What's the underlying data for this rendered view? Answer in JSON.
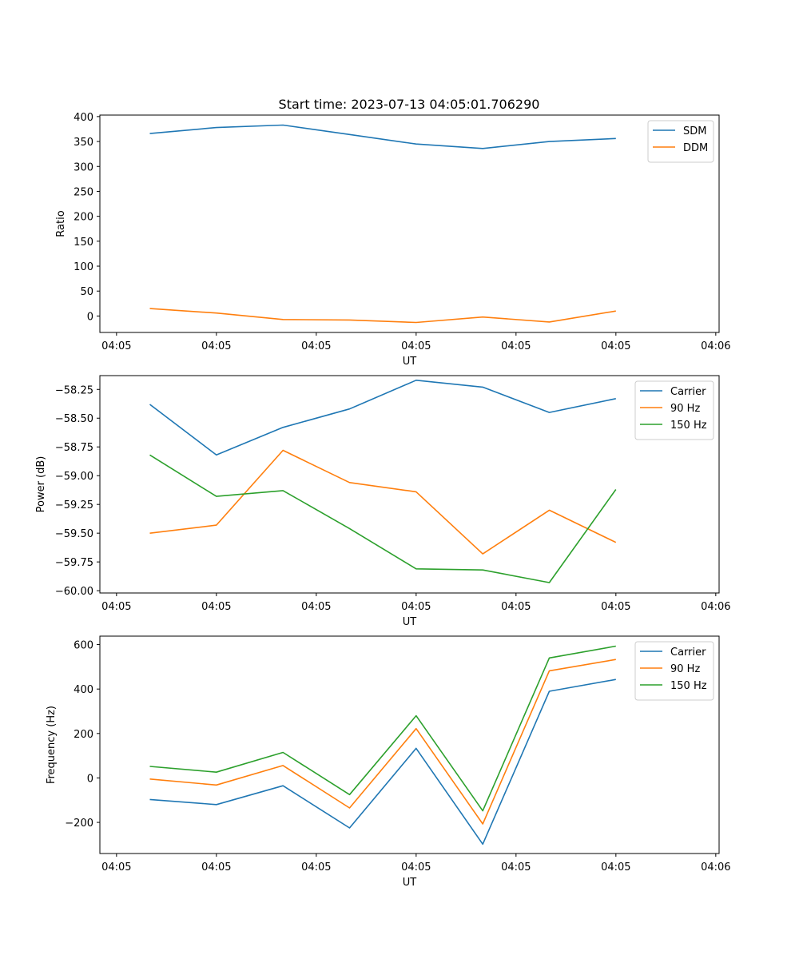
{
  "title": "Start time: 2023-07-13 04:05:01.706290",
  "chart_data": [
    {
      "type": "line",
      "xlabel": "UT",
      "ylabel": "Ratio",
      "x_tick_labels": [
        "04:05",
        "04:05",
        "04:05",
        "04:05",
        "04:05",
        "04:05",
        "04:06"
      ],
      "y_ticks": [
        0,
        50,
        100,
        150,
        200,
        250,
        300,
        350,
        400
      ],
      "y_tick_labels": [
        "0",
        "50",
        "100",
        "150",
        "200",
        "250",
        "300",
        "350",
        "400"
      ],
      "ylim": [
        -33,
        403
      ],
      "xlim": [
        -0.75,
        8.55
      ],
      "x": [
        0,
        1,
        2,
        3,
        4,
        5,
        6,
        7
      ],
      "series": [
        {
          "name": "SDM",
          "color": "#1f77b4",
          "values": [
            366,
            378,
            383,
            364,
            345,
            336,
            350,
            356
          ]
        },
        {
          "name": "DDM",
          "color": "#ff7f0e",
          "values": [
            15,
            6,
            -7,
            -8,
            -13,
            -2,
            -12,
            10
          ]
        }
      ],
      "legend": "top-right"
    },
    {
      "type": "line",
      "xlabel": "UT",
      "ylabel": "Power (dB)",
      "x_tick_labels": [
        "04:05",
        "04:05",
        "04:05",
        "04:05",
        "04:05",
        "04:05",
        "04:06"
      ],
      "y_ticks": [
        -60.0,
        -59.75,
        -59.5,
        -59.25,
        -59.0,
        -58.75,
        -58.5,
        -58.25
      ],
      "y_tick_labels": [
        "−60.00",
        "−59.75",
        "−59.50",
        "−59.25",
        "−59.00",
        "−58.75",
        "−58.50",
        "−58.25"
      ],
      "ylim": [
        -60.02,
        -58.13
      ],
      "xlim": [
        -0.75,
        8.55
      ],
      "x": [
        0,
        1,
        2,
        3,
        4,
        5,
        6,
        7
      ],
      "series": [
        {
          "name": "Carrier",
          "color": "#1f77b4",
          "values": [
            -58.38,
            -58.82,
            -58.58,
            -58.42,
            -58.17,
            -58.23,
            -58.45,
            -58.33
          ]
        },
        {
          "name": "90 Hz",
          "color": "#ff7f0e",
          "values": [
            -59.5,
            -59.43,
            -58.78,
            -59.06,
            -59.14,
            -59.68,
            -59.3,
            -59.58
          ]
        },
        {
          "name": "150 Hz",
          "color": "#2ca02c",
          "values": [
            -58.82,
            -59.18,
            -59.13,
            -59.46,
            -59.81,
            -59.82,
            -59.93,
            -59.12
          ]
        }
      ],
      "legend": "top-right"
    },
    {
      "type": "line",
      "xlabel": "UT",
      "ylabel": "Frequency (Hz)",
      "x_tick_labels": [
        "04:05",
        "04:05",
        "04:05",
        "04:05",
        "04:05",
        "04:05",
        "04:06"
      ],
      "y_ticks": [
        -200,
        0,
        200,
        400,
        600
      ],
      "y_tick_labels": [
        "−200",
        "0",
        "200",
        "400",
        "600"
      ],
      "ylim": [
        -340,
        638
      ],
      "xlim": [
        -0.75,
        8.55
      ],
      "x": [
        0,
        1,
        2,
        3,
        4,
        5,
        6,
        7
      ],
      "series": [
        {
          "name": "Carrier",
          "color": "#1f77b4",
          "values": [
            -97,
            -120,
            -35,
            -225,
            133,
            -298,
            390,
            443
          ]
        },
        {
          "name": "90 Hz",
          "color": "#ff7f0e",
          "values": [
            -5,
            -32,
            56,
            -135,
            222,
            -207,
            482,
            533
          ]
        },
        {
          "name": "150 Hz",
          "color": "#2ca02c",
          "values": [
            52,
            26,
            115,
            -75,
            280,
            -148,
            540,
            593
          ]
        }
      ],
      "legend": "top-right"
    }
  ]
}
